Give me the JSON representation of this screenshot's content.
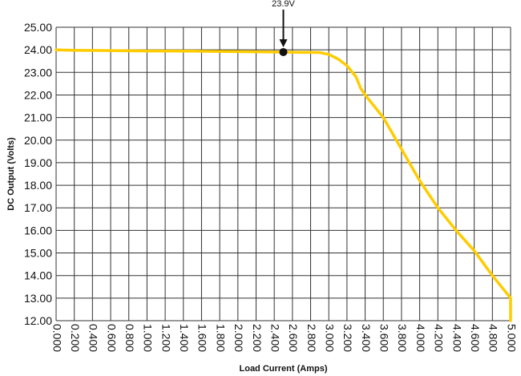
{
  "chart_data": {
    "type": "line",
    "xlabel": "Load Current (Amps)",
    "ylabel": "DC Output (Volts)",
    "xlim": [
      0,
      5.0
    ],
    "ylim": [
      12.0,
      25.0
    ],
    "x_ticks": [
      "0.000",
      "0.200",
      "0.400",
      "0.600",
      "0.800",
      "1.000",
      "1.200",
      "1.400",
      "1.600",
      "1.800",
      "2.000",
      "2.200",
      "2.400",
      "2.600",
      "2.800",
      "3.000",
      "3.200",
      "3.400",
      "3.600",
      "3.800",
      "4.000",
      "4.200",
      "4.400",
      "4.600",
      "4.800",
      "5.000"
    ],
    "y_ticks": [
      "12.00",
      "13.00",
      "14.00",
      "15.00",
      "16.00",
      "17.00",
      "18.00",
      "19.00",
      "20.00",
      "21.00",
      "22.00",
      "23.00",
      "24.00",
      "25.00"
    ],
    "grid": true,
    "series": [
      {
        "color": "#FFCC00",
        "x": [
          0.0,
          0.2,
          0.5,
          1.0,
          1.5,
          2.0,
          2.5,
          2.9,
          3.0,
          3.1,
          3.2,
          3.3,
          3.35,
          3.4,
          3.6,
          3.8,
          4.0,
          4.2,
          4.4,
          4.6,
          4.8,
          5.0,
          5.0
        ],
        "y": [
          24.0,
          23.98,
          23.97,
          23.95,
          23.94,
          23.92,
          23.9,
          23.88,
          23.8,
          23.6,
          23.3,
          22.8,
          22.3,
          22.0,
          21.0,
          19.6,
          18.2,
          17.0,
          16.0,
          15.1,
          14.0,
          13.0,
          12.0
        ]
      }
    ],
    "annotation": {
      "label": "23.9V",
      "x": 2.5,
      "y": 23.9
    },
    "colors": {
      "line": "#FFCC00",
      "grid": "#333333",
      "marker": "#111111"
    }
  }
}
